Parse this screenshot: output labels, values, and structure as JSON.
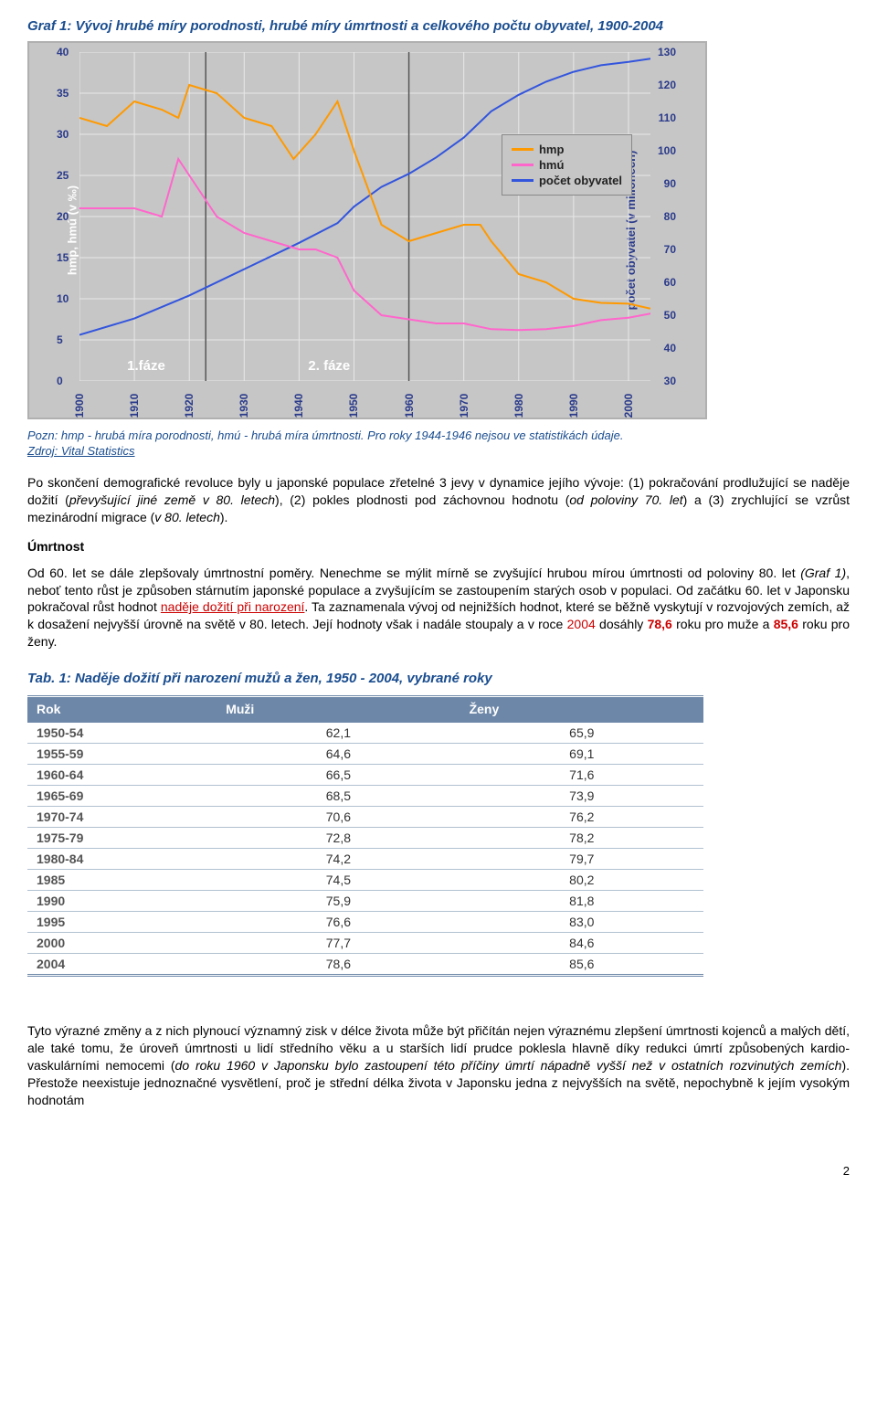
{
  "chart": {
    "title": "Graf 1: Vývoj hrubé míry porodnosti, hrubé míry úmrtnosti a celkového počtu obyvatel, 1900-2004",
    "note": "Pozn: hmp - hrubá míra porodnosti, hmú - hrubá míra úmrtnosti. Pro roky 1944-1946 nejsou ve statistikách údaje.",
    "source": "Zdroj: Vital Statistics",
    "type": "line",
    "background_color": "#c6c6c6",
    "border_color": "#b0b0b0",
    "grid_color": "#e8e8e8",
    "y_left": {
      "label": "hmp, hmú (v ‰)",
      "label_color": "#ffffff",
      "min": 0,
      "max": 40,
      "step": 5,
      "tick_color": "#2a3a8a"
    },
    "y_right": {
      "label": "počet obyvatel (v milionech)",
      "label_color": "#2a3a8a",
      "min": 30,
      "max": 130,
      "step": 10,
      "tick_color": "#2a3a8a"
    },
    "x": {
      "min": 1900,
      "max": 2004,
      "ticks": [
        1900,
        1910,
        1920,
        1930,
        1940,
        1950,
        1960,
        1970,
        1980,
        1990,
        2000
      ],
      "tick_color": "#2a3a8a"
    },
    "legend": {
      "position": "right-middle",
      "items": [
        {
          "label": "hmp",
          "color": "#ff9900"
        },
        {
          "label": "hmú",
          "color": "#ff66cc"
        },
        {
          "label": "počet obyvatel",
          "color": "#3355dd"
        }
      ]
    },
    "phase_markers": [
      {
        "label": "1.fáze",
        "x": 1912,
        "color": "#ffffff"
      },
      {
        "label": "2. fáze",
        "x": 1945,
        "color": "#ffffff"
      }
    ],
    "phase_boundaries": [
      1923,
      1960
    ],
    "series": {
      "hmp": {
        "color": "#ff9900",
        "width": 2,
        "points": [
          [
            1900,
            32
          ],
          [
            1905,
            31
          ],
          [
            1910,
            34
          ],
          [
            1915,
            33
          ],
          [
            1918,
            32
          ],
          [
            1920,
            36
          ],
          [
            1925,
            35
          ],
          [
            1930,
            32
          ],
          [
            1935,
            31
          ],
          [
            1939,
            27
          ],
          [
            1943,
            30
          ],
          [
            1947,
            34
          ],
          [
            1950,
            28
          ],
          [
            1955,
            19
          ],
          [
            1960,
            17
          ],
          [
            1965,
            18
          ],
          [
            1970,
            19
          ],
          [
            1973,
            19
          ],
          [
            1975,
            17
          ],
          [
            1980,
            13
          ],
          [
            1985,
            12
          ],
          [
            1990,
            10
          ],
          [
            1995,
            9.5
          ],
          [
            2000,
            9.4
          ],
          [
            2004,
            8.8
          ]
        ]
      },
      "hmu": {
        "color": "#ff66cc",
        "width": 2,
        "points": [
          [
            1900,
            21
          ],
          [
            1905,
            21
          ],
          [
            1910,
            21
          ],
          [
            1915,
            20
          ],
          [
            1918,
            27
          ],
          [
            1920,
            25
          ],
          [
            1923,
            22
          ],
          [
            1925,
            20
          ],
          [
            1930,
            18
          ],
          [
            1935,
            17
          ],
          [
            1940,
            16
          ],
          [
            1943,
            16
          ],
          [
            1947,
            15
          ],
          [
            1950,
            11
          ],
          [
            1955,
            8
          ],
          [
            1960,
            7.5
          ],
          [
            1965,
            7
          ],
          [
            1970,
            7
          ],
          [
            1975,
            6.3
          ],
          [
            1980,
            6.2
          ],
          [
            1985,
            6.3
          ],
          [
            1990,
            6.7
          ],
          [
            1995,
            7.4
          ],
          [
            2000,
            7.7
          ],
          [
            2004,
            8.2
          ]
        ]
      },
      "pop": {
        "color": "#3355dd",
        "width": 2,
        "axis": "right",
        "points": [
          [
            1900,
            44
          ],
          [
            1910,
            49
          ],
          [
            1920,
            56
          ],
          [
            1930,
            64
          ],
          [
            1940,
            72
          ],
          [
            1947,
            78
          ],
          [
            1950,
            83
          ],
          [
            1955,
            89
          ],
          [
            1960,
            93
          ],
          [
            1965,
            98
          ],
          [
            1970,
            104
          ],
          [
            1975,
            112
          ],
          [
            1980,
            117
          ],
          [
            1985,
            121
          ],
          [
            1990,
            124
          ],
          [
            1995,
            126
          ],
          [
            2000,
            127
          ],
          [
            2004,
            128
          ]
        ]
      }
    }
  },
  "p1": {
    "a": "Po skončení demografické revoluce byly u japonské populace zřetelné 3 jevy v dynamice jejího vývoje: (1) pokračování prodlužující se naděje dožití (",
    "i1": "převyšující jiné země v 80. letech",
    "b": "), (2) pokles plodnosti pod záchovnou hodnotu (",
    "i2": "od poloviny 70. let",
    "c": ") a (3) zrychlující se vzrůst mezinárodní migrace (",
    "i3": "v 80. letech",
    "d": ")."
  },
  "subhead_mortality": "Úmrtnost",
  "p2": {
    "a": "Od 60. let se dále zlepšovaly úmrtnostní poměry. Nenechme se mýlit mírně se zvyšující hrubou mírou úmrtnosti od poloviny 80. let ",
    "i1": "(Graf 1)",
    "b": ", neboť tento růst je způsoben stárnutím japonské populace a zvyšujícím se zastoupením starých osob v populaci. Od začátku 60. let v Japonsku pokračoval růst hodnot ",
    "r1": "naděje dožití při narození",
    "c": ". Ta zaznamenala vývoj od nejnižších hodnot, které se běžně vyskytují v rozvojových zemích, až k dosažení nejvyšší úrovně na světě v 80. letech. Její hodnoty však i nadále stoupaly a v roce ",
    "r2": "2004",
    "d": " dosáhly ",
    "r3": "78,6",
    "e": " roku pro muže a ",
    "r4": "85,6",
    "f": " roku pro ženy."
  },
  "table": {
    "title": "Tab. 1: Naděje dožití při narození mužů a žen, 1950 - 2004, vybrané roky",
    "header_bg": "#6d87a8",
    "header_color": "#ffffff",
    "columns": [
      "Rok",
      "Muži",
      "Ženy"
    ],
    "rows": [
      [
        "1950-54",
        "62,1",
        "65,9"
      ],
      [
        "1955-59",
        "64,6",
        "69,1"
      ],
      [
        "1960-64",
        "66,5",
        "71,6"
      ],
      [
        "1965-69",
        "68,5",
        "73,9"
      ],
      [
        "1970-74",
        "70,6",
        "76,2"
      ],
      [
        "1975-79",
        "72,8",
        "78,2"
      ],
      [
        "1980-84",
        "74,2",
        "79,7"
      ],
      [
        "1985",
        "74,5",
        "80,2"
      ],
      [
        "1990",
        "75,9",
        "81,8"
      ],
      [
        "1995",
        "76,6",
        "83,0"
      ],
      [
        "2000",
        "77,7",
        "84,6"
      ],
      [
        "2004",
        "78,6",
        "85,6"
      ]
    ]
  },
  "p3": {
    "a": "Tyto výrazné změny a z nich plynoucí významný zisk v délce života může být přičítán nejen výraznému zlepšení úmrtnosti kojenců a malých dětí, ale také tomu, že úroveň úmrtnosti u lidí středního věku a u starších lidí prudce poklesla hlavně díky redukci úmrtí způsobených kardio-vaskulárními nemocemi (",
    "i1": "do roku 1960 v Japonsku bylo zastoupení této příčiny úmrtí nápadně vyšší než v ostatních rozvinutých zemích",
    "b": "). Přestože neexistuje jednoznačné vysvětlení, proč je střední délka života v Japonsku jedna z nejvyšších na světě, nepochybně k jejím vysokým hodnotám"
  },
  "page_number": "2"
}
